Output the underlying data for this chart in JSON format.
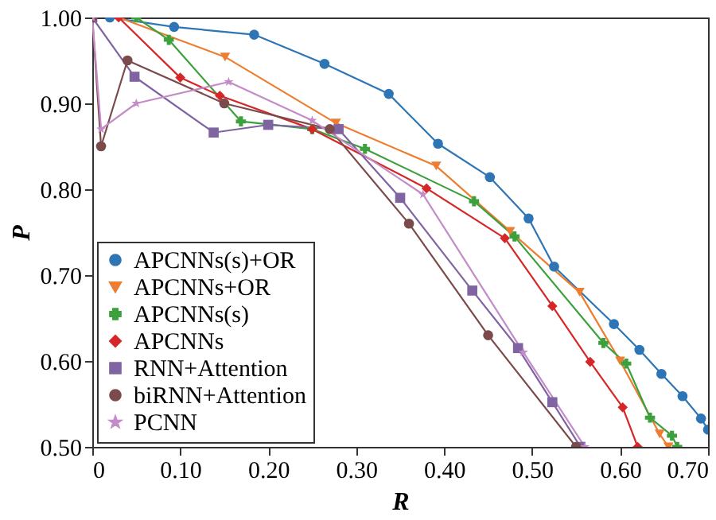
{
  "chart_data": {
    "type": "line",
    "xlabel": "R",
    "ylabel": "P",
    "xlim": [
      0,
      0.7
    ],
    "ylim": [
      0.5,
      1.0
    ],
    "xticks": [
      0,
      {
        "value": 0.1,
        "label": "0.10"
      },
      {
        "value": 0.2,
        "label": "0.20"
      },
      {
        "value": 0.3,
        "label": "0.30"
      },
      {
        "value": 0.4,
        "label": "0.40"
      },
      {
        "value": 0.5,
        "label": "0.50"
      },
      {
        "value": 0.6,
        "label": "0.60"
      },
      {
        "value": 0.7,
        "label": "0.70"
      }
    ],
    "yticks": [
      {
        "value": 0.5,
        "label": "0.50"
      },
      {
        "value": 0.6,
        "label": "0.60"
      },
      {
        "value": 0.7,
        "label": "0.70"
      },
      {
        "value": 0.8,
        "label": "0.80"
      },
      {
        "value": 0.9,
        "label": "0.90"
      },
      {
        "value": 1.0,
        "label": "1.00"
      }
    ],
    "grid": false,
    "legend": "bottom left",
    "line_style": "solid",
    "series": [
      {
        "name": "APCNNs(s)+OR",
        "color": "#2e75b6",
        "marker": "circle",
        "x": [
          0.02,
          0.093,
          0.184,
          0.264,
          0.337,
          0.393,
          0.452,
          0.496,
          0.525,
          0.593,
          0.622,
          0.647,
          0.671,
          0.692,
          0.7
        ],
        "values": [
          1.0,
          0.989,
          0.98,
          0.946,
          0.911,
          0.853,
          0.814,
          0.766,
          0.71,
          0.643,
          0.613,
          0.585,
          0.559,
          0.533,
          0.52
        ]
      },
      {
        "name": "APCNNs+OR",
        "color": "#ed7d31",
        "marker": "triangle",
        "x": [
          0.03,
          0.151,
          0.277,
          0.391,
          0.475,
          0.554,
          0.6,
          0.645,
          0.655
        ],
        "values": [
          1.0,
          0.954,
          0.877,
          0.827,
          0.751,
          0.68,
          0.6,
          0.515,
          0.5
        ]
      },
      {
        "name": "APCNNs(s)",
        "color": "#3ca03c",
        "marker": "cross",
        "x": [
          0.05,
          0.087,
          0.169,
          0.25,
          0.31,
          0.434,
          0.48,
          0.581,
          0.607,
          0.634,
          0.659,
          0.665
        ],
        "values": [
          1.0,
          0.974,
          0.879,
          0.87,
          0.847,
          0.786,
          0.745,
          0.621,
          0.597,
          0.534,
          0.513,
          0.5
        ]
      },
      {
        "name": "APCNNs",
        "color": "#d62728",
        "marker": "diamond",
        "x": [
          0.03,
          0.1,
          0.145,
          0.25,
          0.38,
          0.469,
          0.523,
          0.566,
          0.603,
          0.62
        ],
        "values": [
          1.0,
          0.93,
          0.909,
          0.87,
          0.801,
          0.743,
          0.664,
          0.599,
          0.546,
          0.5
        ]
      },
      {
        "name": "RNN+Attention",
        "color": "#8064a2",
        "marker": "square",
        "x": [
          0,
          0.048,
          0.138,
          0.2,
          0.28,
          0.35,
          0.432,
          0.484,
          0.523,
          0.555
        ],
        "values": [
          1.0,
          0.931,
          0.866,
          0.875,
          0.87,
          0.79,
          0.682,
          0.615,
          0.552,
          0.5
        ]
      },
      {
        "name": "biRNN+Attention",
        "color": "#7b4a4a",
        "marker": "circle",
        "x": [
          0,
          0.01,
          0.04,
          0.15,
          0.27,
          0.36,
          0.45,
          0.55
        ],
        "values": [
          1.0,
          0.85,
          0.95,
          0.9,
          0.87,
          0.76,
          0.63,
          0.5
        ]
      },
      {
        "name": "PCNN",
        "color": "#c38cc8",
        "marker": "star",
        "x": [
          0,
          0.01,
          0.05,
          0.155,
          0.25,
          0.376,
          0.49,
          0.56
        ],
        "values": [
          1.0,
          0.87,
          0.9,
          0.925,
          0.88,
          0.794,
          0.61,
          0.5
        ]
      }
    ]
  }
}
